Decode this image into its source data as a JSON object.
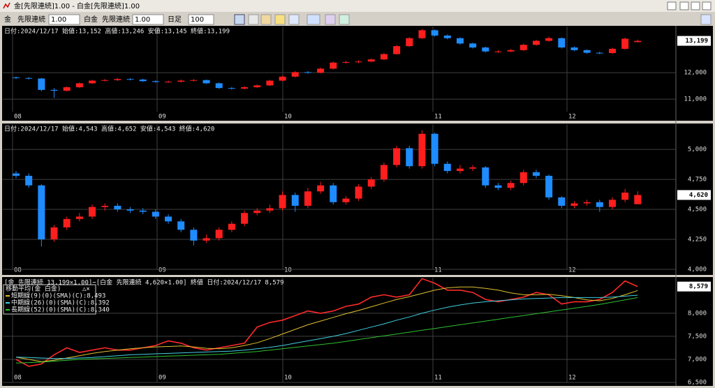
{
  "window": {
    "title": "金[先限連続]1.00 - 白金[先限連続]1.00"
  },
  "toolbar": {
    "item1": "金",
    "contract1": "先限連続",
    "factor1": "1.00",
    "item2": "白金",
    "contract2": "先限連続",
    "factor2": "1.00",
    "period": "日足",
    "count": "100"
  },
  "charts": [
    {
      "type": "candlestick",
      "header": "日付:2024/12/17 始値:13,152 高値:13,246 安値:13,145 終値:13,199",
      "last_label": "13,199",
      "up_color": "#ff1e1e",
      "down_color": "#1e8cff",
      "open": [
        11820,
        11800,
        11780,
        11350,
        11320,
        11450,
        11600,
        11700,
        11720,
        11760,
        11740,
        11680,
        11650,
        11660,
        11700,
        11720,
        11600,
        11420,
        11400,
        11450,
        11520,
        11700,
        11850,
        12020,
        12000,
        12150,
        12380,
        12400,
        12420,
        12500,
        12700,
        13000,
        13300,
        13600,
        13400,
        13300,
        13100,
        12950,
        12800,
        12800,
        12850,
        13050,
        13200,
        13300,
        12950,
        12850,
        12750,
        12740,
        12900,
        13152
      ],
      "high": [
        11860,
        11830,
        11800,
        11420,
        11480,
        11630,
        11730,
        11760,
        11800,
        11790,
        11770,
        11710,
        11700,
        11740,
        11760,
        11740,
        11630,
        11460,
        11490,
        11560,
        11730,
        11880,
        12060,
        12060,
        12190,
        12420,
        12450,
        12470,
        12540,
        12740,
        13040,
        13340,
        13650,
        13630,
        13440,
        13330,
        13130,
        12980,
        12850,
        12890,
        13090,
        13240,
        13360,
        13330,
        12990,
        12880,
        12790,
        12940,
        13320,
        13246
      ],
      "low": [
        11760,
        11740,
        11300,
        11050,
        11290,
        11420,
        11580,
        11670,
        11690,
        11710,
        11650,
        11620,
        11620,
        11630,
        11670,
        11570,
        11390,
        11360,
        11370,
        11420,
        11500,
        11680,
        11820,
        11960,
        11970,
        12120,
        12340,
        12360,
        12390,
        12470,
        12680,
        12970,
        13270,
        13360,
        13260,
        13060,
        12910,
        12760,
        12750,
        12770,
        12820,
        13020,
        13170,
        12910,
        12810,
        12710,
        12700,
        12710,
        12870,
        13145
      ],
      "close": [
        11800,
        11780,
        11350,
        11320,
        11450,
        11600,
        11700,
        11720,
        11760,
        11740,
        11680,
        11650,
        11660,
        11700,
        11720,
        11600,
        11420,
        11400,
        11450,
        11520,
        11700,
        11850,
        12020,
        12000,
        12150,
        12380,
        12400,
        12420,
        12500,
        12700,
        13000,
        13300,
        13600,
        13400,
        13300,
        13100,
        12950,
        12800,
        12800,
        12850,
        13050,
        13200,
        13300,
        12950,
        12850,
        12750,
        12740,
        12900,
        13280,
        13199
      ],
      "ylim": [
        10530,
        13740
      ],
      "yticks": [
        {
          "value": 11000,
          "label": "11,000"
        },
        {
          "value": 12000,
          "label": "12,000"
        }
      ],
      "xtick_labels": [
        "08",
        "09",
        "10",
        "11",
        "12"
      ]
    },
    {
      "type": "candlestick",
      "header": "日付:2024/12/17 始値:4,543 高値:4,652 安値:4,543 終値:4,620",
      "last_label": "4,620",
      "up_color": "#ff1e1e",
      "down_color": "#1e8cff",
      "open": [
        4800,
        4780,
        4700,
        4250,
        4350,
        4420,
        4440,
        4520,
        4530,
        4500,
        4490,
        4480,
        4440,
        4400,
        4330,
        4240,
        4260,
        4330,
        4380,
        4470,
        4490,
        4510,
        4620,
        4530,
        4650,
        4700,
        4560,
        4590,
        4690,
        4750,
        4870,
        5010,
        4860,
        5130,
        4880,
        4820,
        4840,
        4850,
        4700,
        4680,
        4720,
        4810,
        4780,
        4600,
        4530,
        4550,
        4560,
        4520,
        4580,
        4543
      ],
      "high": [
        4820,
        4800,
        4710,
        4370,
        4440,
        4470,
        4540,
        4550,
        4550,
        4520,
        4510,
        4500,
        4460,
        4420,
        4350,
        4290,
        4350,
        4400,
        4490,
        4510,
        4540,
        4650,
        4640,
        4680,
        4730,
        4720,
        4610,
        4710,
        4770,
        4890,
        5030,
        5030,
        5160,
        5140,
        4900,
        4870,
        4870,
        4860,
        4720,
        4740,
        4830,
        4830,
        4790,
        4610,
        4570,
        4580,
        4580,
        4600,
        4670,
        4652
      ],
      "low": [
        4760,
        4680,
        4190,
        4230,
        4330,
        4400,
        4420,
        4490,
        4480,
        4470,
        4460,
        4420,
        4380,
        4310,
        4200,
        4220,
        4240,
        4310,
        4360,
        4450,
        4470,
        4490,
        4480,
        4510,
        4630,
        4540,
        4540,
        4570,
        4670,
        4730,
        4850,
        4840,
        4840,
        4860,
        4800,
        4800,
        4820,
        4680,
        4660,
        4660,
        4700,
        4760,
        4580,
        4510,
        4510,
        4530,
        4480,
        4500,
        4560,
        4543
      ],
      "close": [
        4780,
        4700,
        4250,
        4350,
        4420,
        4440,
        4520,
        4530,
        4500,
        4490,
        4480,
        4440,
        4400,
        4330,
        4240,
        4260,
        4330,
        4380,
        4470,
        4490,
        4510,
        4620,
        4530,
        4650,
        4700,
        4560,
        4590,
        4690,
        4750,
        4870,
        5010,
        4860,
        5130,
        4880,
        4820,
        4840,
        4850,
        4700,
        4680,
        4720,
        4810,
        4780,
        4600,
        4530,
        4550,
        4560,
        4520,
        4580,
        4640,
        4620
      ],
      "ylim": [
        4000,
        5210
      ],
      "yticks": [
        {
          "value": 4000,
          "label": "4,000"
        },
        {
          "value": 4250,
          "label": "4,250"
        },
        {
          "value": 4500,
          "label": "4,500"
        },
        {
          "value": 4750,
          "label": "4,750"
        },
        {
          "value": 5000,
          "label": "5,000"
        }
      ],
      "xtick_labels": [
        "08",
        "09",
        "10",
        "11",
        "12"
      ]
    },
    {
      "type": "line",
      "header": "[金 先限連続 13,199×1.00]−[白金 先限連続 4,620×1.00] 終値 日付:2024/12/17 8,579",
      "last_label": "8,579",
      "legend_title": "移動平均(金 白金)",
      "legend_controls": "△×",
      "series": [
        {
          "color": "#ff2a2a",
          "values": [
            7000,
            6850,
            6900,
            7100,
            7250,
            7150,
            7200,
            7250,
            7200,
            7200,
            7250,
            7300,
            7400,
            7350,
            7250,
            7200,
            7250,
            7300,
            7350,
            7700,
            7800,
            7850,
            7950,
            8050,
            8000,
            8050,
            8150,
            8200,
            8350,
            8400,
            8350,
            8400,
            8750,
            8650,
            8500,
            8500,
            8450,
            8300,
            8250,
            8300,
            8350,
            8450,
            8400,
            8200,
            8250,
            8250,
            8300,
            8450,
            8700,
            8579
          ]
        },
        {
          "name": "短期線(9)(0)(SMA)(C):8,493",
          "color": "#e0c030",
          "values": [
            7050,
            7000,
            6950,
            6980,
            7030,
            7080,
            7130,
            7170,
            7200,
            7230,
            7250,
            7270,
            7280,
            7290,
            7270,
            7240,
            7230,
            7250,
            7300,
            7360,
            7450,
            7550,
            7650,
            7750,
            7830,
            7910,
            7990,
            8060,
            8140,
            8220,
            8300,
            8360,
            8430,
            8500,
            8550,
            8570,
            8570,
            8540,
            8500,
            8440,
            8400,
            8400,
            8410,
            8380,
            8340,
            8290,
            8270,
            8320,
            8400,
            8493
          ]
        },
        {
          "name": "中期線(26)(0)(SMA)(C):8,392",
          "color": "#40d0e0",
          "values": [
            7050,
            7040,
            7030,
            7020,
            7020,
            7030,
            7040,
            7060,
            7080,
            7100,
            7110,
            7120,
            7130,
            7140,
            7150,
            7160,
            7170,
            7180,
            7200,
            7230,
            7260,
            7300,
            7350,
            7400,
            7450,
            7500,
            7560,
            7630,
            7700,
            7770,
            7850,
            7920,
            8000,
            8070,
            8130,
            8180,
            8220,
            8250,
            8270,
            8290,
            8310,
            8320,
            8330,
            8340,
            8340,
            8340,
            8340,
            8350,
            8370,
            8392
          ]
        },
        {
          "name": "長期線(52)(0)(SMA)(C):8,340",
          "color": "#30c030",
          "values": [
            6920,
            6930,
            6940,
            6960,
            6980,
            7000,
            7010,
            7020,
            7030,
            7040,
            7050,
            7060,
            7070,
            7080,
            7090,
            7100,
            7110,
            7130,
            7150,
            7170,
            7200,
            7230,
            7260,
            7290,
            7320,
            7350,
            7390,
            7430,
            7470,
            7510,
            7550,
            7590,
            7630,
            7670,
            7710,
            7750,
            7790,
            7830,
            7870,
            7910,
            7950,
            7990,
            8030,
            8070,
            8110,
            8150,
            8190,
            8240,
            8290,
            8340
          ]
        }
      ],
      "ylim": [
        6500,
        8770
      ],
      "yticks": [
        {
          "value": 6500,
          "label": "6,500"
        },
        {
          "value": 7000,
          "label": "7,000"
        },
        {
          "value": 7500,
          "label": "7,500"
        },
        {
          "value": 8000,
          "label": "8,000"
        }
      ],
      "xtick_labels": [
        "08",
        "09",
        "10",
        "11",
        "12"
      ]
    }
  ]
}
